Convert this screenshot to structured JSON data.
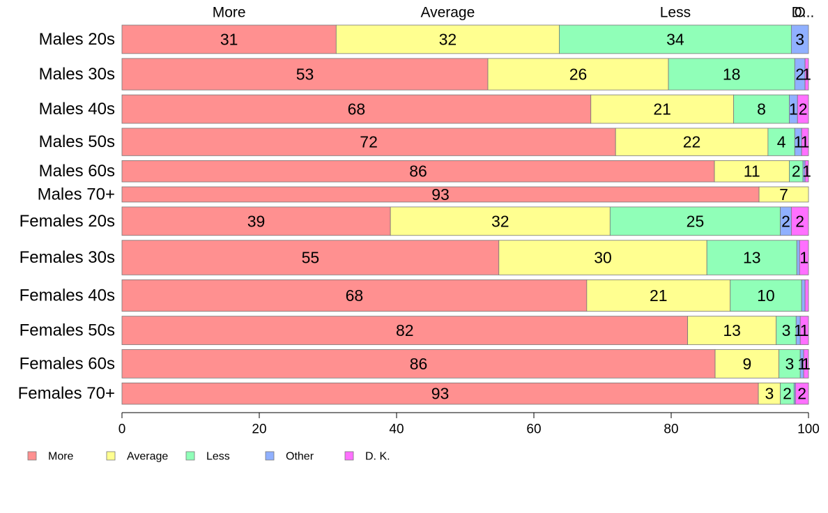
{
  "chart_data": {
    "type": "bar",
    "orientation": "horizontal",
    "stacked": true,
    "categories": [
      "Males 20s",
      "Males 30s",
      "Males 40s",
      "Males 50s",
      "Males 60s",
      "Males 70+",
      "Females 20s",
      "Females 30s",
      "Females 40s",
      "Females 50s",
      "Females 60s",
      "Females 70+"
    ],
    "series": [
      {
        "name": "More",
        "color": "#ff9090",
        "values": [
          31.2,
          53.3,
          68.3,
          71.9,
          86.3,
          92.8,
          39.1,
          54.9,
          67.7,
          82.4,
          86.4,
          92.7
        ]
      },
      {
        "name": "Average",
        "color": "#ffff90",
        "values": [
          32.5,
          26.3,
          20.8,
          22.2,
          10.9,
          7.2,
          32.0,
          30.3,
          20.9,
          12.9,
          9.3,
          3.2
        ]
      },
      {
        "name": "Less",
        "color": "#90ffb8",
        "values": [
          33.8,
          18.4,
          8.1,
          3.9,
          2.0,
          0.0,
          24.8,
          13.1,
          10.4,
          2.9,
          3.1,
          2.0
        ]
      },
      {
        "name": "Other",
        "color": "#90b0ff",
        "values": [
          2.5,
          1.5,
          1.2,
          1.0,
          0.3,
          0.0,
          1.6,
          0.4,
          0.5,
          0.6,
          0.5,
          0.2
        ]
      },
      {
        "name": "D. K.",
        "color": "#ff70ff",
        "values": [
          0.0,
          0.5,
          1.6,
          1.0,
          0.5,
          0.0,
          2.5,
          1.3,
          0.5,
          1.2,
          0.7,
          1.9
        ]
      }
    ],
    "segment_labels": [
      [
        "31",
        "32",
        "34",
        "3",
        ""
      ],
      [
        "53",
        "26",
        "18",
        "2",
        "1"
      ],
      [
        "68",
        "21",
        "8",
        "1",
        "2"
      ],
      [
        "72",
        "22",
        "4",
        "1",
        "1"
      ],
      [
        "86",
        "11",
        "2",
        "",
        "1"
      ],
      [
        "93",
        "7",
        "",
        "",
        ""
      ],
      [
        "39",
        "32",
        "25",
        "2",
        "2"
      ],
      [
        "55",
        "30",
        "13",
        "",
        "1"
      ],
      [
        "68",
        "21",
        "10",
        "",
        ""
      ],
      [
        "82",
        "13",
        "3",
        "1",
        "1"
      ],
      [
        "86",
        "9",
        "3",
        "1",
        "1"
      ],
      [
        "93",
        "3",
        "2",
        "",
        "2"
      ]
    ],
    "bar_weights": [
      28,
      31,
      28,
      27,
      21,
      15,
      28,
      34,
      31,
      28,
      28,
      21
    ],
    "top_labels": [
      "More",
      "Average",
      "Less",
      "O",
      "D..."
    ],
    "xlim": [
      0,
      100
    ],
    "xticks": [
      0,
      20,
      40,
      60,
      80,
      100
    ],
    "xlabel": "",
    "ylabel": "",
    "title": "",
    "grid": false,
    "legend_position": "bottom-left"
  }
}
